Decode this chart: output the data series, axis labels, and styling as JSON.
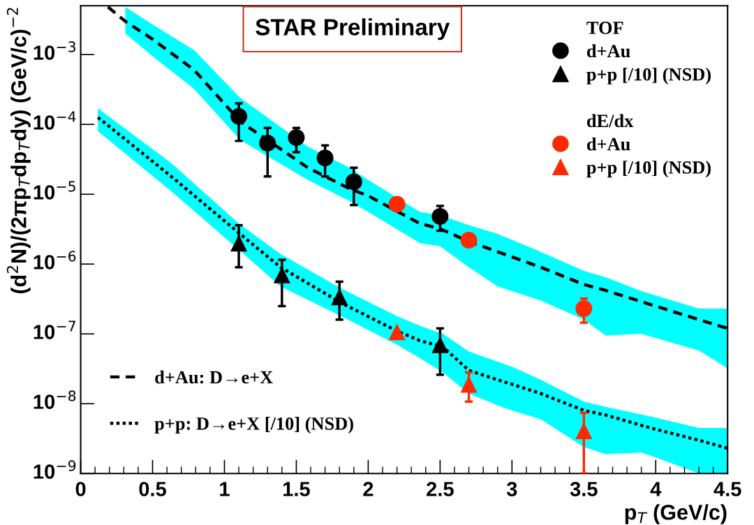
{
  "chart_data": {
    "type": "scatter",
    "xlabel": "p$_{T}$ (GeV/c)",
    "ylabel": "(d$^{2}$N)/(2πp$_{T}$dp$_{T}$dy) (GeV/c)$^{−2}$",
    "annotations": [
      "STAR Preliminary",
      "TOF",
      "dE/dx"
    ],
    "log": "y",
    "grid": false,
    "legend": "top right",
    "xlim": [
      0,
      4.5
    ],
    "xticks": [
      0,
      0.5,
      1,
      1.5,
      2,
      2.5,
      3,
      3.5,
      4,
      4.5
    ],
    "ylim": [
      1e-09,
      0.005
    ],
    "yticks": [
      {
        "value": 1e-09,
        "label": "10$^{−9}$"
      },
      {
        "value": 1e-08,
        "label": "10$^{−8}$"
      },
      {
        "value": 1e-07,
        "label": "10$^{−7}$"
      },
      {
        "value": 1e-06,
        "label": "10$^{−6}$"
      },
      {
        "value": 1e-05,
        "label": "10$^{−5}$"
      },
      {
        "value": 0.0001,
        "label": "10$^{−4}$"
      },
      {
        "value": 0.001,
        "label": "10$^{−3}$"
      }
    ],
    "series": [
      {
        "type": "line",
        "name": "d+Au: D→e+X",
        "color": "#000000",
        "line_style": "dashed",
        "x": [
          0.19,
          0.31,
          0.5,
          0.79,
          1.11,
          1.58,
          1.87,
          2.0,
          2.36,
          2.5,
          2.7,
          2.9,
          3.2,
          3.5,
          3.65,
          3.9,
          4.3,
          4.5
        ],
        "values": [
          0.0048,
          0.003,
          0.00166,
          0.0006,
          0.00011,
          2.4e-05,
          1.2e-05,
          9.5e-06,
          3.8e-06,
          3.2e-06,
          2.1e-06,
          1.5e-06,
          9e-07,
          5.1e-07,
          4.2e-07,
          2.9e-07,
          1.6e-07,
          1.2e-07
        ],
        "upper": [
          null,
          0.0048,
          0.0027,
          0.00115,
          0.00024,
          4.8e-05,
          2.4e-05,
          1.6e-05,
          5.6e-06,
          5e-06,
          3.6e-06,
          2.7e-06,
          1.5e-06,
          8e-07,
          6.5e-07,
          4.1e-07,
          2.3e-07,
          2.3e-07
        ],
        "lower": [
          null,
          0.002,
          0.00095,
          0.00032,
          6e-05,
          1.6e-05,
          8e-06,
          5.6e-06,
          2e-06,
          1.8e-06,
          9e-07,
          4.8e-07,
          3e-07,
          1.6e-07,
          9.5e-08,
          1e-07,
          5.8e-08,
          3.2e-08
        ]
      },
      {
        "type": "line",
        "name": "p+p: D→e+X [/10] (NSD)",
        "color": "#000000",
        "line_style": "dotted",
        "x": [
          0.12,
          0.63,
          1.1,
          1.39,
          1.81,
          2.2,
          2.36,
          2.52,
          2.7,
          2.9,
          3.0,
          3.2,
          3.5,
          3.65,
          3.9,
          4.0,
          4.3,
          4.5
        ],
        "values": [
          0.000126,
          1.8e-05,
          2.8e-06,
          9e-07,
          2.8e-07,
          1.1e-07,
          8e-08,
          6.5e-08,
          3e-08,
          2.2e-08,
          1.9e-08,
          1.4e-08,
          8e-09,
          6.9e-09,
          4.9e-09,
          4.3e-09,
          3e-09,
          2.3e-09
        ],
        "upper": [
          0.00017,
          2.8e-05,
          3.8e-06,
          1.4e-06,
          4.5e-07,
          1.8e-07,
          1.3e-07,
          1e-07,
          5.6e-08,
          4e-08,
          3.4e-08,
          2.2e-08,
          1.07e-08,
          9e-09,
          7e-09,
          6.3e-09,
          4.5e-09,
          4.5e-09
        ],
        "lower": [
          8e-05,
          1.1e-05,
          1.6e-06,
          4.8e-07,
          1.8e-07,
          7e-08,
          4.5e-08,
          2.8e-08,
          1.4e-08,
          9.5e-09,
          8e-09,
          6e-09,
          2.4e-09,
          1.9e-09,
          2e-09,
          1.7e-09,
          1e-09,
          1e-09
        ]
      },
      {
        "name": "d+Au",
        "color": "#000000",
        "marker": "circle",
        "x": [
          1.1,
          1.3,
          1.5,
          1.7,
          1.9,
          2.5
        ],
        "values": [
          0.00013,
          5.4e-05,
          6.5e-05,
          3.3e-05,
          1.5e-05,
          4.8e-06
        ],
        "errors": [
          [
            5.8e-05,
            0.0002
          ],
          [
            1.8e-05,
            8.9e-05
          ],
          [
            4e-05,
            8.9e-05
          ],
          [
            1.8e-05,
            5e-05
          ],
          [
            7e-06,
            2.4e-05
          ],
          [
            3e-06,
            6.8e-06
          ]
        ]
      },
      {
        "name": "p+p [/10] (NSD)",
        "color": "#000000",
        "marker": "triangle",
        "x": [
          1.1,
          1.4,
          1.8,
          2.5
        ],
        "values": [
          2e-06,
          7e-07,
          3.4e-07,
          7e-08
        ],
        "errors": [
          [
            9e-07,
            3.6e-06
          ],
          [
            2.5e-07,
            1.15e-06
          ],
          [
            1.6e-07,
            5.6e-07
          ],
          [
            2.6e-08,
            1.2e-07
          ]
        ]
      },
      {
        "name": "d+Au",
        "color": "#ff2a00",
        "marker": "circle",
        "x": [
          2.2,
          2.7,
          3.5
        ],
        "values": [
          7.2e-06,
          2.2e-06,
          2.3e-07
        ],
        "errors": [
          null,
          null,
          [
            1.45e-07,
            3.2e-07
          ]
        ]
      },
      {
        "name": "p+p [/10] (NSD)",
        "color": "#ff2a00",
        "marker": "triangle",
        "x": [
          2.2,
          2.7,
          3.5
        ],
        "values": [
          1.07e-07,
          1.9e-08,
          4.1e-09
        ],
        "errors": [
          null,
          [
            1.07e-08,
            2.8e-08
          ],
          [
            1e-09,
            7.4e-09
          ]
        ]
      }
    ]
  }
}
